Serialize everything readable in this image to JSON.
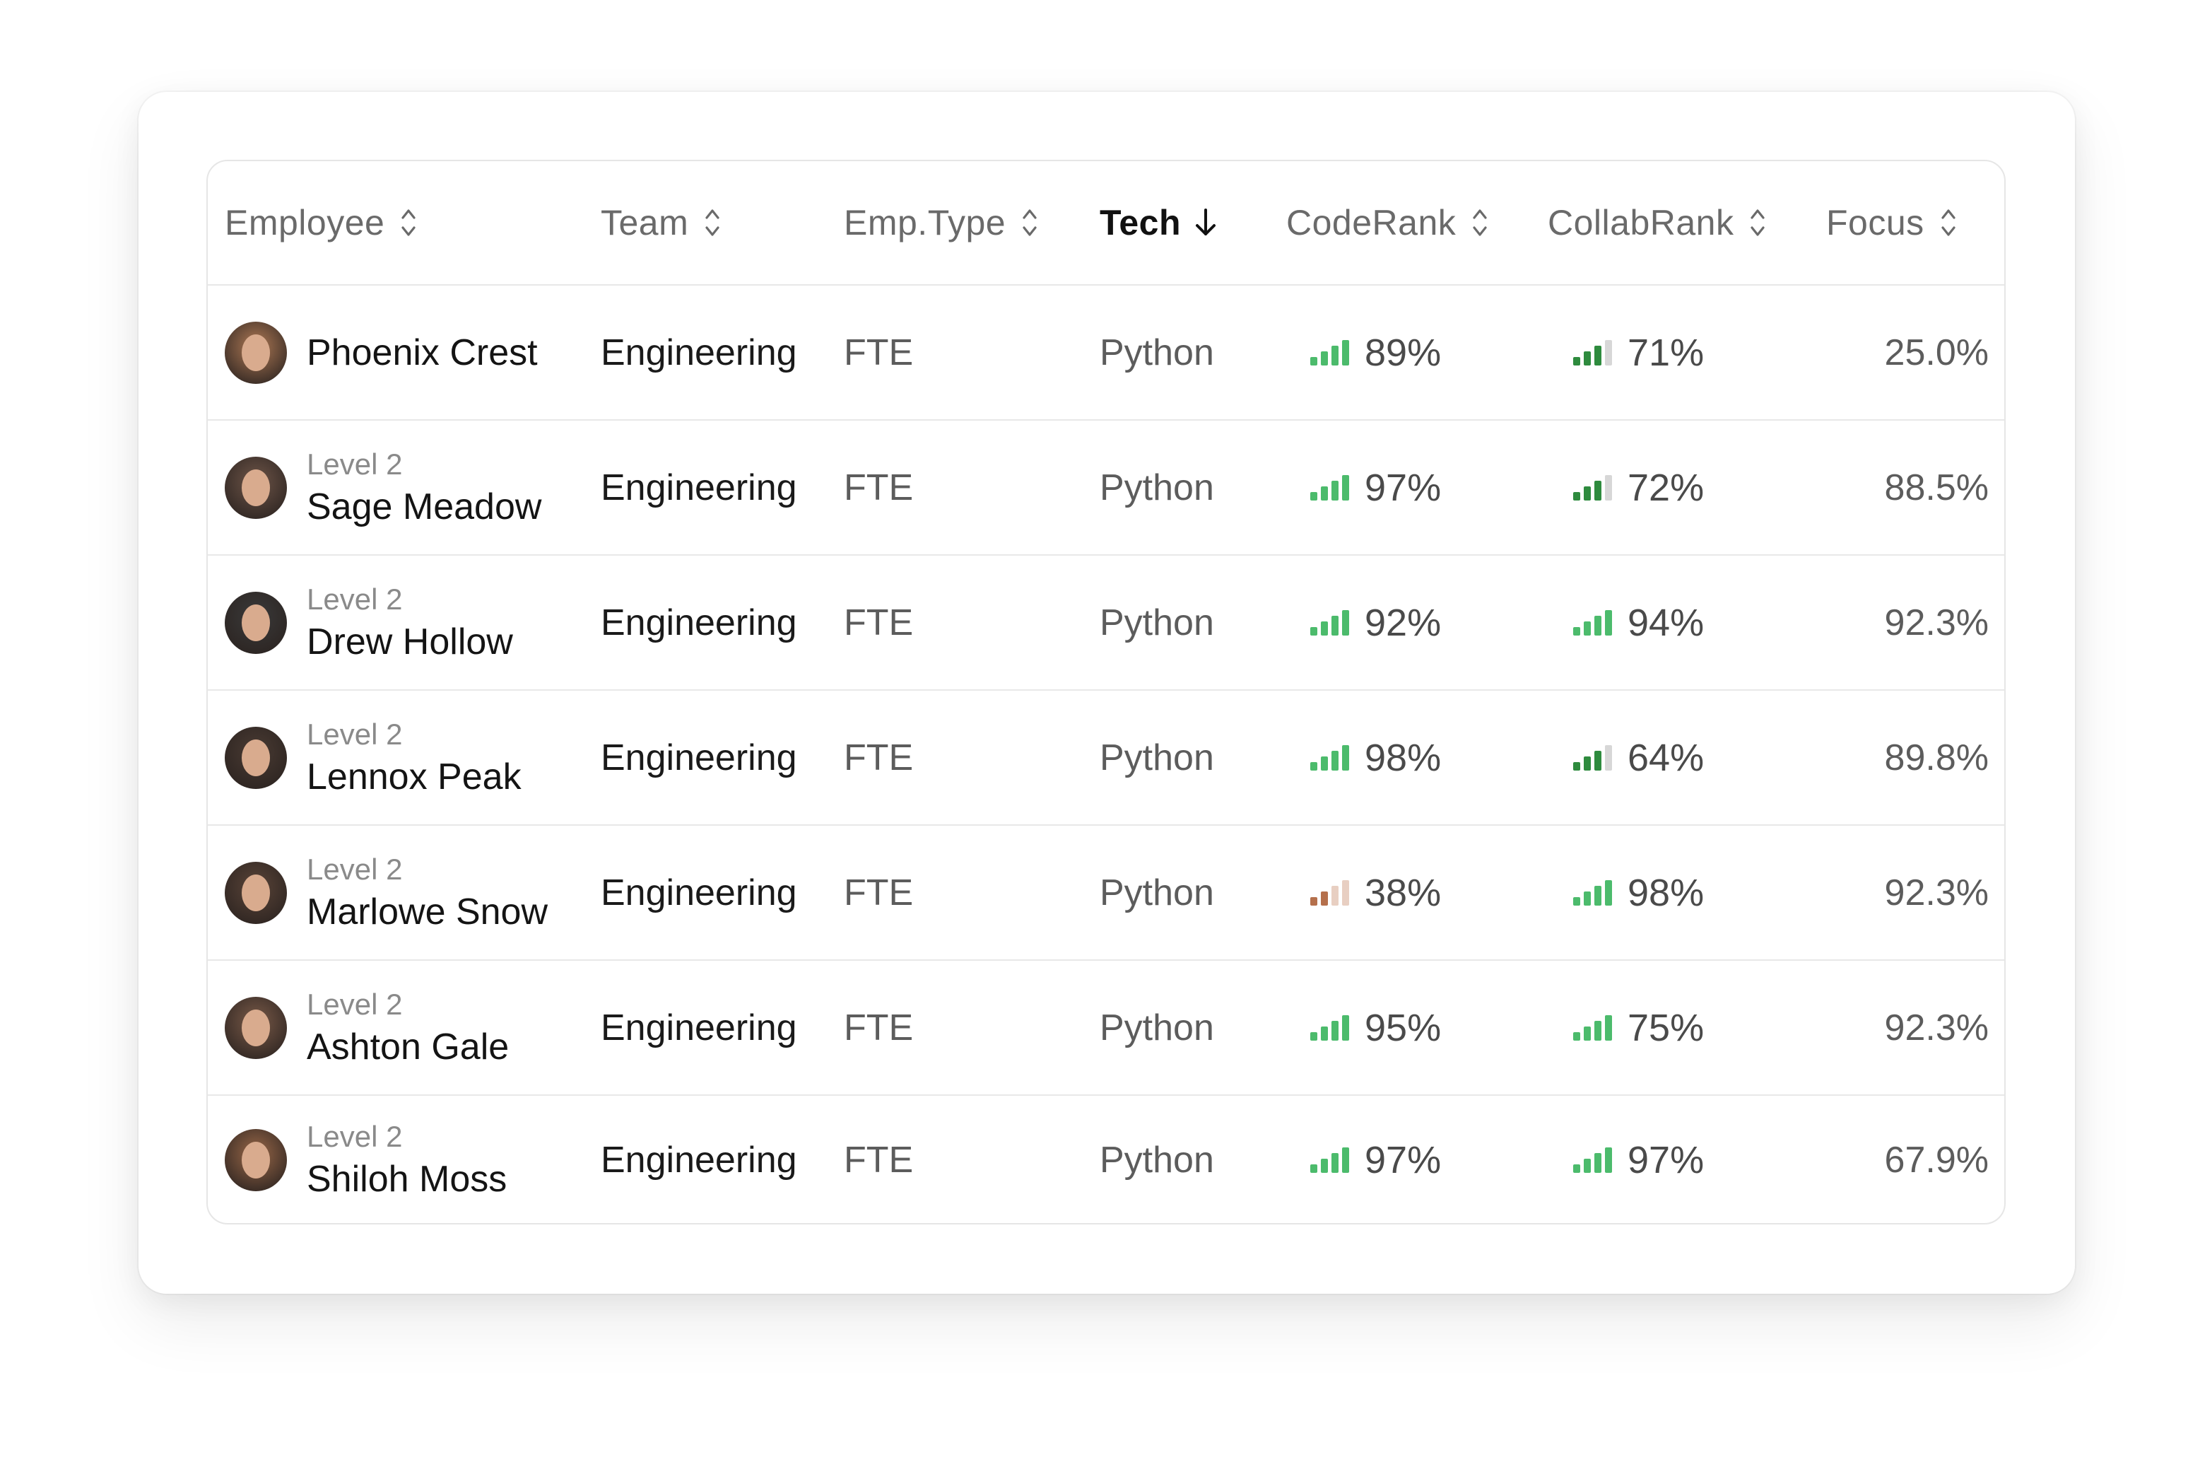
{
  "header": {
    "employee": "Employee",
    "team": "Team",
    "emp_type": "Emp.Type",
    "tech": "Tech",
    "code_rank": "CodeRank",
    "collab_rank": "CollabRank",
    "focus": "Focus"
  },
  "colors": {
    "green": "#4cbb6c",
    "green_dark": "#2e8b3e",
    "bar_empty": "#d7d7d7",
    "orange": "#b5704c",
    "orange_light": "#e8cfc2"
  },
  "rows": [
    {
      "level": "",
      "name": "Phoenix Crest",
      "team": "Engineering",
      "type": "FTE",
      "tech": "Python",
      "code": "89%",
      "code_bars": 4,
      "code_tone": "green",
      "collab": "71%",
      "collab_bars": 3,
      "collab_tone": "green-dark",
      "focus": "25.0%",
      "avatar": "#b07a55"
    },
    {
      "level": "Level 2",
      "name": "Sage Meadow",
      "team": "Engineering",
      "type": "FTE",
      "tech": "Python",
      "code": "97%",
      "code_bars": 4,
      "code_tone": "green",
      "collab": "72%",
      "collab_bars": 3,
      "collab_tone": "green-dark",
      "focus": "88.5%",
      "avatar": "#6e5548"
    },
    {
      "level": "Level 2",
      "name": "Drew Hollow",
      "team": "Engineering",
      "type": "FTE",
      "tech": "Python",
      "code": "92%",
      "code_bars": 4,
      "code_tone": "green",
      "collab": "94%",
      "collab_bars": 4,
      "collab_tone": "green",
      "focus": "92.3%",
      "avatar": "#3a3a3a"
    },
    {
      "level": "Level 2",
      "name": "Lennox Peak",
      "team": "Engineering",
      "type": "FTE",
      "tech": "Python",
      "code": "98%",
      "code_bars": 4,
      "code_tone": "green",
      "collab": "64%",
      "collab_bars": 3,
      "collab_tone": "green-dark",
      "focus": "89.8%",
      "avatar": "#4a3b33"
    },
    {
      "level": "Level 2",
      "name": "Marlowe Snow",
      "team": "Engineering",
      "type": "FTE",
      "tech": "Python",
      "code": "38%",
      "code_bars": 2,
      "code_tone": "orange",
      "collab": "98%",
      "collab_bars": 4,
      "collab_tone": "green",
      "focus": "92.3%",
      "avatar": "#5a4438"
    },
    {
      "level": "Level 2",
      "name": "Ashton Gale",
      "team": "Engineering",
      "type": "FTE",
      "tech": "Python",
      "code": "95%",
      "code_bars": 4,
      "code_tone": "green",
      "collab": "75%",
      "collab_bars": 4,
      "collab_tone": "green",
      "focus": "92.3%",
      "avatar": "#7a5a48"
    },
    {
      "level": "Level 2",
      "name": "Shiloh Moss",
      "team": "Engineering",
      "type": "FTE",
      "tech": "Python",
      "code": "97%",
      "code_bars": 4,
      "code_tone": "green",
      "collab": "97%",
      "collab_bars": 4,
      "collab_tone": "green",
      "focus": "67.9%",
      "avatar": "#9a6848"
    }
  ]
}
